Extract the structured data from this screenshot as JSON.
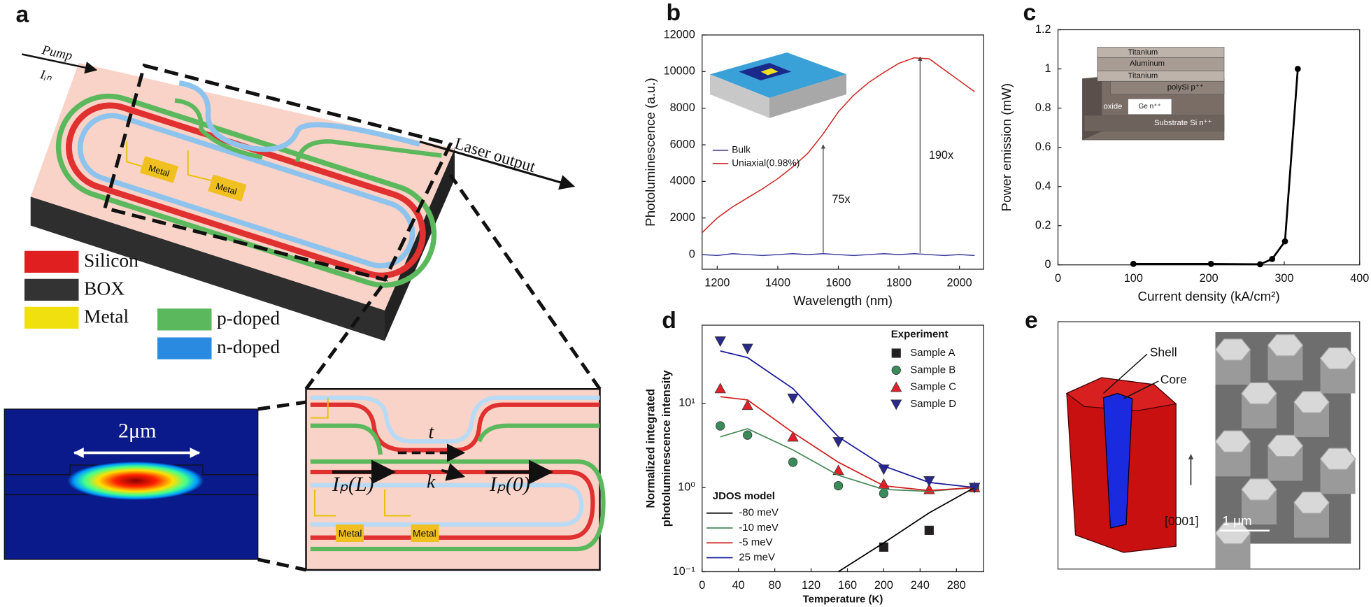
{
  "panel_labels": [
    "a",
    "b",
    "c",
    "d",
    "e"
  ],
  "diagram_a": {
    "pump": "Pump",
    "input": "Iᵢₙ",
    "output": "Laser output",
    "metal_labels": [
      "Metal",
      "Metal"
    ],
    "legend": [
      "Silicon",
      "BOX",
      "Metal",
      "p-doped",
      "n-doped"
    ],
    "mode_width": "2μm",
    "zoom": {
      "t": "t",
      "k": "k",
      "left_current": "Iₚ(L)",
      "right_current": "Iₚ(0)",
      "metal_labels": [
        "Metal",
        "Metal"
      ]
    }
  },
  "chart_data": [
    {
      "type": "line",
      "xlabel": "Wavelength (nm)",
      "ylabel": "Photoluminescence (a.u.)",
      "x": [
        1150,
        1200,
        1250,
        1300,
        1350,
        1400,
        1450,
        1500,
        1550,
        1600,
        1650,
        1700,
        1750,
        1800,
        1850,
        1900,
        1950,
        2000,
        2050
      ],
      "series": [
        {
          "name": "Bulk",
          "color": "#3a3a9a",
          "values": [
            0,
            -50,
            50,
            0,
            -50,
            0,
            50,
            0,
            50,
            0,
            -50,
            0,
            50,
            0,
            50,
            0,
            -50,
            0,
            -50
          ]
        },
        {
          "name": "Uniaxial(0.98%)",
          "color": "#cc2222",
          "values": [
            1200,
            2000,
            2600,
            3100,
            3600,
            4150,
            4800,
            5550,
            6600,
            7800,
            8700,
            9400,
            9950,
            10450,
            10750,
            10700,
            10100,
            9500,
            8900
          ]
        }
      ],
      "xlim": [
        1150,
        2080
      ],
      "ylim": [
        -800,
        12000
      ],
      "xticks": [
        1200,
        1400,
        1600,
        1800,
        2000
      ],
      "yticks": [
        0,
        2000,
        4000,
        6000,
        8000,
        10000,
        12000
      ],
      "annotations": [
        {
          "text": "75x",
          "x": 1550,
          "y": 6000
        },
        {
          "text": "190x",
          "x": 1870,
          "y": 10800
        }
      ]
    },
    {
      "type": "line",
      "markers": true,
      "xlabel": "Current density (kA/cm²)",
      "ylabel": "Power emission (mW)",
      "series": [
        {
          "color": "#000000",
          "x": [
            100,
            203,
            268,
            284,
            301,
            318
          ],
          "values": [
            0.005,
            0.005,
            0.003,
            0.03,
            0.12,
            1.0
          ]
        }
      ],
      "xlim": [
        0,
        400
      ],
      "ylim": [
        0,
        1.2
      ],
      "xticks": [
        0,
        100,
        200,
        300,
        400
      ],
      "yticks": [
        0,
        0.2,
        0.4,
        0.6,
        0.8,
        1,
        1.2
      ],
      "inset_layers": [
        "Titanium",
        "Aluminum",
        "Titanium",
        "polySi p⁺⁺",
        "oxide",
        "Ge n⁺⁺",
        "Substrate Si n⁺⁺"
      ]
    },
    {
      "type": "scatter",
      "log_y": true,
      "xlabel": "Temperature (K)",
      "ylabel": [
        "Normalized integrated",
        "photoluminescence intensity"
      ],
      "legend_titles": [
        "Experiment",
        "JDOS model"
      ],
      "series": [
        {
          "name": "Sample A",
          "color": "#231f20",
          "marker": "square",
          "x": [
            200,
            250,
            300
          ],
          "values": [
            0.196,
            0.31,
            1.0
          ]
        },
        {
          "name": "Sample B",
          "color": "#3a8a5a",
          "marker": "circle",
          "x": [
            20,
            50,
            100,
            150,
            200,
            300
          ],
          "values": [
            5.4,
            4.2,
            2.0,
            1.05,
            0.85,
            1.0
          ]
        },
        {
          "name": "Sample C",
          "color": "#e0202a",
          "marker": "triangle-up",
          "x": [
            20,
            50,
            100,
            150,
            200,
            250,
            300
          ],
          "values": [
            15,
            9.5,
            4.0,
            1.6,
            1.1,
            0.95,
            1.0
          ]
        },
        {
          "name": "Sample D",
          "color": "#2a2a8a",
          "marker": "triangle-down",
          "x": [
            20,
            50,
            100,
            150,
            200,
            250,
            300
          ],
          "values": [
            55,
            45,
            11.5,
            3.5,
            1.65,
            1.2,
            1.0
          ]
        },
        {
          "name": "-80 meV",
          "color": "#000000",
          "x": [
            150,
            200,
            250,
            300
          ],
          "values": [
            0.1,
            0.22,
            0.5,
            1.0
          ]
        },
        {
          "name": "-10 meV",
          "color": "#4a8a5a",
          "x": [
            20,
            50,
            100,
            150,
            200,
            250,
            300
          ],
          "values": [
            4,
            5,
            2.8,
            1.4,
            0.95,
            0.9,
            1.0
          ]
        },
        {
          "name": "-5 meV",
          "color": "#d02020",
          "x": [
            20,
            50,
            100,
            150,
            200,
            250,
            300
          ],
          "values": [
            12,
            11,
            4.5,
            2,
            1.05,
            0.92,
            1.0
          ]
        },
        {
          "name": "25  meV",
          "color": "#1a1a9a",
          "x": [
            20,
            50,
            100,
            150,
            200,
            250,
            300
          ],
          "values": [
            42,
            35,
            15,
            4,
            1.8,
            1.15,
            1.0
          ]
        }
      ],
      "xlim": [
        0,
        310
      ],
      "ylim": [
        0.1,
        85
      ],
      "xticks": [
        0,
        40,
        80,
        120,
        160,
        200,
        240,
        280
      ],
      "yticks": [
        {
          "value": 0.1,
          "label": "10⁻¹"
        },
        {
          "value": 1,
          "label": "10⁰"
        },
        {
          "value": 10,
          "label": "10¹"
        }
      ]
    }
  ],
  "diagram_e": {
    "shell": "Shell",
    "core": "Core",
    "direction": "[0001]",
    "scale_bar": "1 μm"
  }
}
